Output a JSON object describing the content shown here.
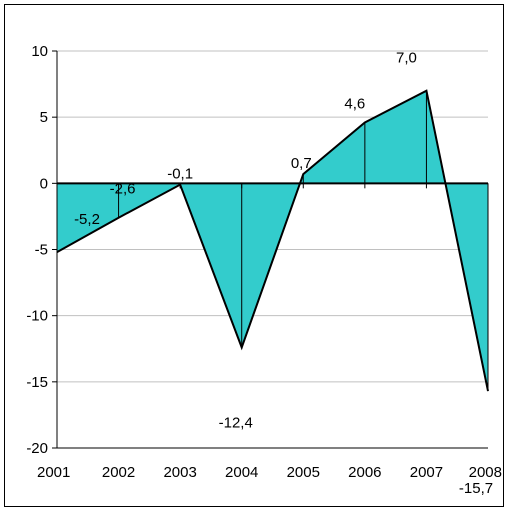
{
  "chart_data": {
    "type": "area",
    "x": [
      "2001",
      "2002",
      "2003",
      "2004",
      "2005",
      "2006",
      "2007",
      "2008"
    ],
    "values": [
      -5.2,
      -2.6,
      -0.1,
      -12.4,
      0.7,
      4.6,
      7.0,
      -15.7
    ],
    "data_labels": [
      "-5,2",
      "-2,6",
      "-0,1",
      "-12,4",
      "0,7",
      "4,6",
      "7,0",
      "-15,7"
    ],
    "y_ticks": [
      10,
      5,
      0,
      -5,
      -10,
      -15,
      -20
    ],
    "ylim": [
      -20,
      10
    ],
    "title": "",
    "xlabel": "",
    "ylabel": "",
    "grid": true,
    "legend": "none",
    "colors": {
      "fill": "#33CCCC",
      "line": "#000000",
      "grid": "#C0C0C0"
    }
  }
}
